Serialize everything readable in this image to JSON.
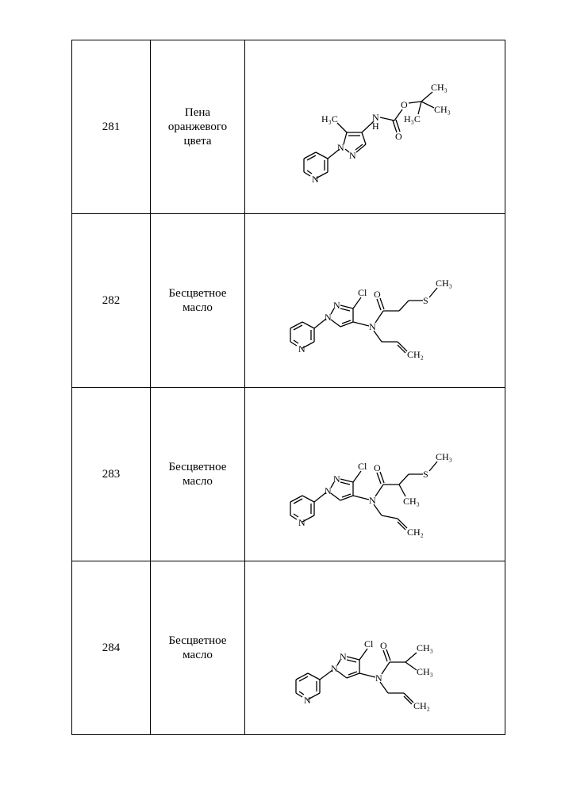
{
  "table": {
    "border_color": "#000000",
    "background": "#ffffff",
    "rows": [
      {
        "id": "281",
        "description": "Пена\nоранжевого\nцвета"
      },
      {
        "id": "282",
        "description": "Бесцветное\nмасло"
      },
      {
        "id": "283",
        "description": "Бесцветное\nмасло"
      },
      {
        "id": "284",
        "description": "Бесцветное\nмасло"
      }
    ]
  },
  "structures": {
    "common": {
      "atom_font": "Times New Roman",
      "atom_fontsize": 12,
      "bond_color": "#000000",
      "bond_width": 1.3
    },
    "row281": {
      "labels": {
        "pyridine_N": "N",
        "pyrazole_N1": "N",
        "pyrazole_N2": "N",
        "CH3_ring": "H₃C",
        "NH": "N",
        "H_on_N": "H",
        "O_ester": "O",
        "O_carbonyl": "O",
        "tBu_C1": "CH₃",
        "tBu_C2": "CH₃",
        "tBu_C3": "H₃C"
      }
    },
    "row282": {
      "labels": {
        "pyridine_N": "N",
        "pyrazole_N1": "N",
        "pyrazole_N2": "N",
        "Cl": "Cl",
        "O_carbonyl": "O",
        "amide_N": "N",
        "S": "S",
        "S_CH3": "CH₃",
        "allyl_CH2": "CH₂"
      }
    },
    "row283": {
      "labels": {
        "pyridine_N": "N",
        "pyrazole_N1": "N",
        "pyrazole_N2": "N",
        "Cl": "Cl",
        "O_carbonyl": "O",
        "amide_N": "N",
        "S": "S",
        "S_CH3": "CH₃",
        "branch_CH3": "CH₃",
        "allyl_CH2": "CH₂"
      }
    },
    "row284": {
      "labels": {
        "pyridine_N": "N",
        "pyrazole_N1": "N",
        "pyrazole_N2": "N",
        "Cl": "Cl",
        "O_carbonyl": "O",
        "amide_N": "N",
        "iPr_CH3a": "CH₃",
        "iPr_CH3b": "CH₃",
        "allyl_CH2": "CH₂"
      }
    }
  }
}
